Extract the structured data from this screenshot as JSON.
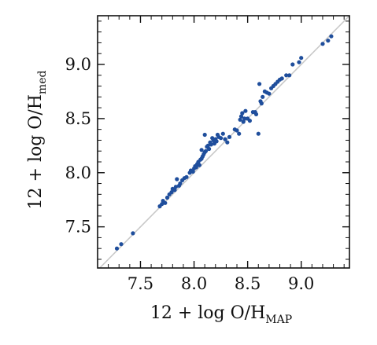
{
  "chart_data": {
    "type": "scatter",
    "xlabel": "12 + log O/H",
    "xlabel_sub": "MAP",
    "ylabel": "12 + log O/H",
    "ylabel_sub": "med",
    "xlim": [
      7.1,
      9.45
    ],
    "ylim": [
      7.12,
      9.45
    ],
    "xticks": [
      "7.5",
      "8.0",
      "8.5",
      "9.0"
    ],
    "yticks": [
      "7.5",
      "8.0",
      "8.5",
      "9.0"
    ],
    "grid": false,
    "reference_line": "one-to-one",
    "colors": {
      "points": "#1f4e9c",
      "reference_line": "#c8c8c8",
      "axes": "#111111"
    },
    "points": [
      [
        7.28,
        7.3
      ],
      [
        7.32,
        7.34
      ],
      [
        7.43,
        7.44
      ],
      [
        7.68,
        7.69
      ],
      [
        7.7,
        7.71
      ],
      [
        7.71,
        7.74
      ],
      [
        7.73,
        7.72
      ],
      [
        7.75,
        7.77
      ],
      [
        7.77,
        7.8
      ],
      [
        7.79,
        7.82
      ],
      [
        7.8,
        7.85
      ],
      [
        7.82,
        7.84
      ],
      [
        7.83,
        7.87
      ],
      [
        7.84,
        7.94
      ],
      [
        7.86,
        7.88
      ],
      [
        7.87,
        7.9
      ],
      [
        7.89,
        7.93
      ],
      [
        7.91,
        7.95
      ],
      [
        7.93,
        7.96
      ],
      [
        7.96,
        8.0
      ],
      [
        7.97,
        8.02
      ],
      [
        7.99,
        8.01
      ],
      [
        8.0,
        8.04
      ],
      [
        8.01,
        8.06
      ],
      [
        8.02,
        8.05
      ],
      [
        8.03,
        8.08
      ],
      [
        8.04,
        8.1
      ],
      [
        8.05,
        8.07
      ],
      [
        8.06,
        8.12
      ],
      [
        8.07,
        8.13
      ],
      [
        8.07,
        8.21
      ],
      [
        8.08,
        8.15
      ],
      [
        8.09,
        8.17
      ],
      [
        8.1,
        8.19
      ],
      [
        8.1,
        8.35
      ],
      [
        8.11,
        8.2
      ],
      [
        8.12,
        8.24
      ],
      [
        8.13,
        8.25
      ],
      [
        8.14,
        8.22
      ],
      [
        8.15,
        8.28
      ],
      [
        8.16,
        8.26
      ],
      [
        8.17,
        8.32
      ],
      [
        8.18,
        8.3
      ],
      [
        8.19,
        8.27
      ],
      [
        8.2,
        8.31
      ],
      [
        8.21,
        8.29
      ],
      [
        8.22,
        8.35
      ],
      [
        8.23,
        8.33
      ],
      [
        8.25,
        8.32
      ],
      [
        8.27,
        8.36
      ],
      [
        8.29,
        8.31
      ],
      [
        8.31,
        8.28
      ],
      [
        8.33,
        8.33
      ],
      [
        8.38,
        8.4
      ],
      [
        8.4,
        8.39
      ],
      [
        8.42,
        8.36
      ],
      [
        8.43,
        8.49
      ],
      [
        8.44,
        8.52
      ],
      [
        8.45,
        8.55
      ],
      [
        8.46,
        8.47
      ],
      [
        8.47,
        8.5
      ],
      [
        8.48,
        8.57
      ],
      [
        8.5,
        8.5
      ],
      [
        8.52,
        8.48
      ],
      [
        8.55,
        8.56
      ],
      [
        8.57,
        8.56
      ],
      [
        8.58,
        8.54
      ],
      [
        8.6,
        8.36
      ],
      [
        8.61,
        8.82
      ],
      [
        8.62,
        8.66
      ],
      [
        8.63,
        8.64
      ],
      [
        8.64,
        8.7
      ],
      [
        8.66,
        8.75
      ],
      [
        8.68,
        8.74
      ],
      [
        8.7,
        8.73
      ],
      [
        8.72,
        8.78
      ],
      [
        8.74,
        8.8
      ],
      [
        8.76,
        8.82
      ],
      [
        8.78,
        8.84
      ],
      [
        8.8,
        8.86
      ],
      [
        8.82,
        8.87
      ],
      [
        8.86,
        8.9
      ],
      [
        8.89,
        8.9
      ],
      [
        8.92,
        9.0
      ],
      [
        8.98,
        9.02
      ],
      [
        9.0,
        9.06
      ],
      [
        9.2,
        9.19
      ],
      [
        9.25,
        9.22
      ],
      [
        9.28,
        9.26
      ]
    ]
  }
}
